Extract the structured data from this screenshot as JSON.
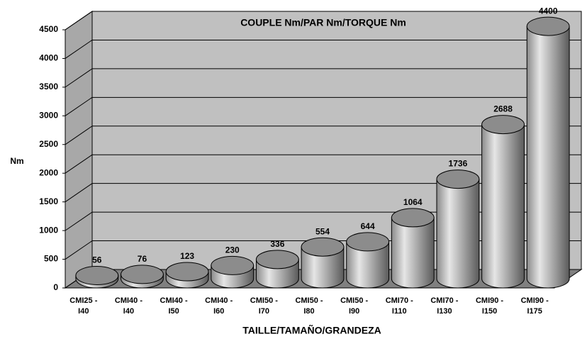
{
  "chart_data": {
    "type": "cylinder-bar",
    "title": "COUPLE Nm/PAR Nm/TORQUE Nm",
    "y_label": "Nm",
    "x_label": "TAILLE/TAMAÑO/GRANDEZA",
    "categories": [
      [
        "CMI25 -",
        "I40"
      ],
      [
        "CMI40 -",
        "I40"
      ],
      [
        "CMI40 -",
        "I50"
      ],
      [
        "CMI40 -",
        "I60"
      ],
      [
        "CMI50 -",
        "I70"
      ],
      [
        "CMI50 -",
        "I80"
      ],
      [
        "CMI50 -",
        "I90"
      ],
      [
        "CMI70 -",
        "I110"
      ],
      [
        "CMI70 -",
        "I130"
      ],
      [
        "CMI90 -",
        "I150"
      ],
      [
        "CMI90 -",
        "I175"
      ]
    ],
    "values": [
      56,
      76,
      123,
      230,
      336,
      554,
      644,
      1064,
      1736,
      2688,
      4400
    ],
    "color": "#a8a8a8",
    "ylim": [
      0,
      4500
    ],
    "yticks": [
      0,
      500,
      1000,
      1500,
      2000,
      2500,
      3000,
      3500,
      4000,
      4500
    ],
    "grid": true
  }
}
